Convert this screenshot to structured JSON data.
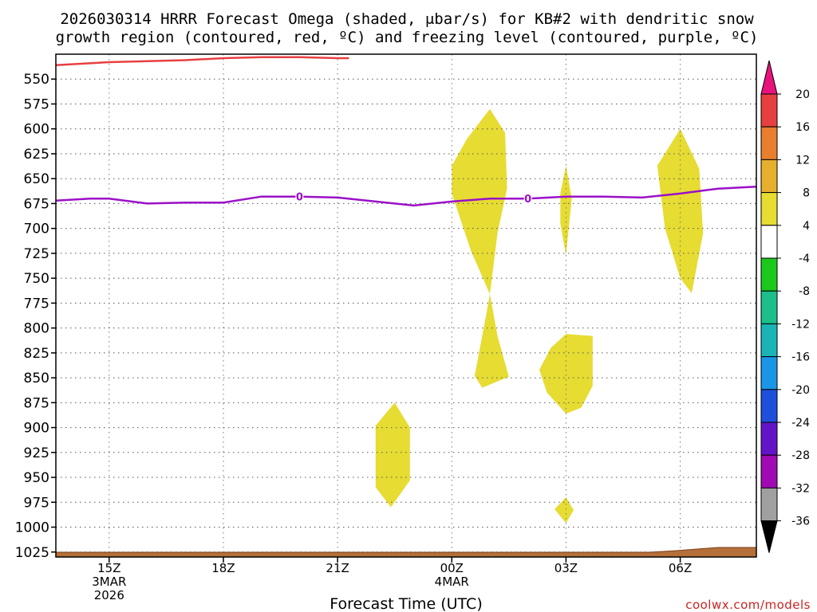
{
  "chart_data": {
    "type": "contour",
    "title_line1": "2026030314 HRRR Forecast Omega (shaded, μbar/s) for KB#2 with dendritic snow",
    "title_line2": "growth region (contoured, red, ºC) and freezing level (contoured, purple, ºC)",
    "xlabel": "Forecast Time (UTC)",
    "credit": "coolwx.com/models",
    "xlim": [
      13.6,
      32.0
    ],
    "ylim": [
      1030,
      525
    ],
    "y_ticks": [
      550,
      575,
      600,
      625,
      650,
      675,
      700,
      725,
      750,
      775,
      800,
      825,
      850,
      875,
      900,
      925,
      950,
      975,
      1000,
      1025
    ],
    "y_tick_labels": [
      "550",
      "575",
      "600",
      "625",
      "650",
      "675",
      "700",
      "725",
      "750",
      "775",
      "800",
      "825",
      "850",
      "875",
      "900",
      "925",
      "950",
      "975",
      "1000",
      "1025"
    ],
    "x_ticks": [
      {
        "hour": 15,
        "line1": "15Z",
        "line2": "3MAR",
        "line3": "2026"
      },
      {
        "hour": 18,
        "line1": "18Z",
        "line2": "",
        "line3": ""
      },
      {
        "hour": 21,
        "line1": "21Z",
        "line2": "",
        "line3": ""
      },
      {
        "hour": 24,
        "line1": "00Z",
        "line2": "4MAR",
        "line3": ""
      },
      {
        "hour": 27,
        "line1": "03Z",
        "line2": "",
        "line3": ""
      },
      {
        "hour": 30,
        "line1": "06Z",
        "line2": "",
        "line3": ""
      }
    ],
    "colorbar": {
      "bins": [
        {
          "label": "",
          "color": "#e8137d"
        },
        {
          "label": "20",
          "color": "#e64040"
        },
        {
          "label": "16",
          "color": "#e87e2e"
        },
        {
          "label": "12",
          "color": "#e6b02e"
        },
        {
          "label": "8",
          "color": "#e6dc32"
        },
        {
          "label": "4",
          "color": "#ffffff"
        },
        {
          "label": "-4",
          "color": "#1cc81c"
        },
        {
          "label": "-8",
          "color": "#1cbe8a"
        },
        {
          "label": "-12",
          "color": "#1ab4b4"
        },
        {
          "label": "-16",
          "color": "#1a96e6"
        },
        {
          "label": "-20",
          "color": "#1e50dc"
        },
        {
          "label": "-24",
          "color": "#6414c8"
        },
        {
          "label": "-28",
          "color": "#a00ab4"
        },
        {
          "label": "-32",
          "color": "#a0a0a0"
        },
        {
          "label": "-36",
          "color": "#000000"
        }
      ]
    },
    "freezing_level": {
      "label": "0",
      "color": "#9b10c8",
      "hours": [
        13.6,
        14.5,
        15.0,
        16.0,
        17.0,
        18.0,
        19.0,
        20.0,
        21.0,
        22.0,
        23.0,
        24.0,
        25.0,
        26.0,
        27.0,
        28.0,
        29.0,
        30.0,
        31.0,
        32.0
      ],
      "pressure": [
        672,
        670,
        670,
        675,
        674,
        674,
        668,
        668,
        669,
        673,
        677,
        673,
        670,
        670,
        668,
        668,
        669,
        665,
        660,
        658
      ],
      "label_hours": [
        20.0,
        26.0
      ]
    },
    "dgz_contour": {
      "color": "#e64040",
      "hours": [
        13.6,
        15.0,
        16.0,
        17.0,
        18.0,
        19.0,
        20.0,
        21.0,
        21.3
      ],
      "pressure": [
        536,
        533,
        532,
        531,
        529,
        528,
        528,
        529,
        529
      ]
    },
    "omega_regions": [
      {
        "value_bin": "4-8",
        "color": "#e6dc32",
        "points": [
          [
            24.0,
            637
          ],
          [
            24.4,
            610
          ],
          [
            25.0,
            580
          ],
          [
            25.4,
            604
          ],
          [
            25.45,
            660
          ],
          [
            25.2,
            705
          ],
          [
            25.0,
            766
          ],
          [
            24.5,
            722
          ],
          [
            24.0,
            665
          ]
        ]
      },
      {
        "value_bin": "4-8",
        "color": "#e6dc32",
        "points": [
          [
            25.0,
            766
          ],
          [
            25.2,
            808
          ],
          [
            25.5,
            849
          ],
          [
            25.3,
            852
          ],
          [
            24.8,
            860
          ],
          [
            24.6,
            848
          ],
          [
            24.8,
            808
          ]
        ]
      },
      {
        "value_bin": "4-8",
        "color": "#e6dc32",
        "points": [
          [
            26.85,
            665
          ],
          [
            27.0,
            637
          ],
          [
            27.15,
            670
          ],
          [
            27.0,
            727
          ],
          [
            26.85,
            695
          ]
        ]
      },
      {
        "value_bin": "4-8",
        "color": "#e6dc32",
        "points": [
          [
            26.3,
            842
          ],
          [
            26.6,
            820
          ],
          [
            27.0,
            806
          ],
          [
            27.7,
            808
          ],
          [
            27.7,
            858
          ],
          [
            27.4,
            880
          ],
          [
            27.0,
            886
          ],
          [
            26.5,
            865
          ]
        ]
      },
      {
        "value_bin": "4-8",
        "color": "#e6dc32",
        "points": [
          [
            22.0,
            898
          ],
          [
            22.5,
            875
          ],
          [
            22.9,
            900
          ],
          [
            22.9,
            953
          ],
          [
            22.4,
            980
          ],
          [
            22.0,
            960
          ]
        ]
      },
      {
        "value_bin": "4-8",
        "color": "#e6dc32",
        "points": [
          [
            26.7,
            982
          ],
          [
            27.0,
            970
          ],
          [
            27.2,
            983
          ],
          [
            27.0,
            996
          ]
        ]
      },
      {
        "value_bin": "4-8",
        "color": "#e6dc32",
        "points": [
          [
            29.4,
            637
          ],
          [
            30.0,
            600
          ],
          [
            30.5,
            640
          ],
          [
            30.6,
            705
          ],
          [
            30.3,
            765
          ],
          [
            30.0,
            750
          ],
          [
            29.6,
            700
          ]
        ]
      }
    ],
    "terrain_color": "#b5703a"
  }
}
